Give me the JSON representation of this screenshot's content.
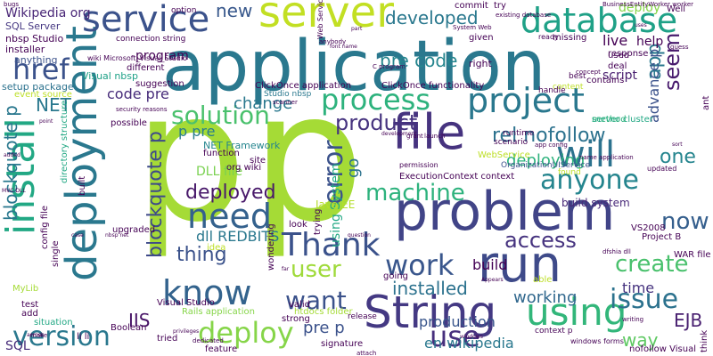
{
  "words": [
    {
      "text": "p",
      "color": "#a5db36"
    },
    {
      "text": "p",
      "color": "#a5db36"
    },
    {
      "text": "application",
      "color": "#2a788e"
    },
    {
      "text": "problem",
      "color": "#414487"
    },
    {
      "text": "deployment",
      "color": "#2a788e"
    },
    {
      "text": "install",
      "color": "#22a884"
    },
    {
      "text": "file",
      "color": "#46337f"
    },
    {
      "text": "project",
      "color": "#2a788e"
    },
    {
      "text": "service",
      "color": "#3b528b"
    },
    {
      "text": "server",
      "color": "#c2df23"
    },
    {
      "text": "database",
      "color": "#1fa187"
    },
    {
      "text": "String",
      "color": "#443983"
    },
    {
      "text": "run",
      "color": "#3e4a89"
    },
    {
      "text": "need",
      "color": "#34618d"
    },
    {
      "text": "Thank",
      "color": "#3b528b"
    },
    {
      "text": "will",
      "color": "#2c728e"
    },
    {
      "text": "know",
      "color": "#33638d"
    },
    {
      "text": "using",
      "color": "#32b67a"
    },
    {
      "text": "version",
      "color": "#2a788e"
    },
    {
      "text": "work",
      "color": "#39568c"
    },
    {
      "text": "process",
      "color": "#2db27d"
    },
    {
      "text": "solution",
      "color": "#4ac16d"
    },
    {
      "text": "href",
      "color": "#3b528b"
    },
    {
      "text": "use",
      "color": "#472f7d"
    },
    {
      "text": "issue",
      "color": "#2c728e"
    },
    {
      "text": "deploy",
      "color": "#86d549"
    },
    {
      "text": "anyone",
      "color": "#25858e"
    },
    {
      "text": "error",
      "color": "#3b528b"
    },
    {
      "text": "machine",
      "color": "#2db27d"
    },
    {
      "text": "blockquote p",
      "color": "#2a788e"
    },
    {
      "text": "blockquote p",
      "color": "#3e4a89"
    },
    {
      "text": "want",
      "color": "#3b528b"
    },
    {
      "text": "user",
      "color": "#9fda3a"
    },
    {
      "text": "access",
      "color": "#46337f"
    },
    {
      "text": "create",
      "color": "#4ac16d"
    },
    {
      "text": "now",
      "color": "#355f8d"
    },
    {
      "text": "seem",
      "color": "#481b6d"
    },
    {
      "text": "installed",
      "color": "#2c728e"
    },
    {
      "text": "deployed",
      "color": "#48186a"
    },
    {
      "text": "developed",
      "color": "#2a788e"
    },
    {
      "text": "product",
      "color": "#46337f"
    },
    {
      "text": "working",
      "color": "#31688e"
    },
    {
      "text": "rel nofollow",
      "color": "#2c728e"
    },
    {
      "text": "pre code",
      "color": "#25858e"
    },
    {
      "text": "one",
      "color": "#25858e"
    },
    {
      "text": "app",
      "color": "#2a788e"
    },
    {
      "text": "new",
      "color": "#38588c"
    },
    {
      "text": "change",
      "color": "#2a788e"
    },
    {
      "text": "thing",
      "color": "#3b528b"
    },
    {
      "text": "deploying",
      "color": "#2db27d"
    },
    {
      "text": "build",
      "color": "#440154"
    },
    {
      "text": "live",
      "color": "#440154"
    },
    {
      "text": "time",
      "color": "#46337f"
    },
    {
      "text": "EJB",
      "color": "#481f70"
    },
    {
      "text": "way",
      "color": "#5ec962"
    },
    {
      "text": "IIS",
      "color": "#481467"
    },
    {
      "text": "deploy",
      "color": "#86d549"
    },
    {
      "text": "NET",
      "color": "#2a788e"
    },
    {
      "text": "SQL",
      "color": "#472c7a"
    },
    {
      "text": "dll REDBITS",
      "color": "#2a788e"
    },
    {
      "text": "code pre",
      "color": "#472c7a"
    },
    {
      "text": "p pre",
      "color": "#287c8e"
    },
    {
      "text": "DLL file",
      "color": "#7ad151"
    },
    {
      "text": "pre p",
      "color": "#3b528b"
    },
    {
      "text": "using System",
      "color": "#22a884"
    },
    {
      "text": "go",
      "color": "#2c728e"
    },
    {
      "text": "en wikipedia",
      "color": "#2a788e"
    },
    {
      "text": "production",
      "color": "#39568c"
    },
    {
      "text": "program",
      "color": "#440154"
    },
    {
      "text": "help",
      "color": "#440154"
    },
    {
      "text": "advance p",
      "color": "#3b528b"
    },
    {
      "text": "script",
      "color": "#481d6f"
    },
    {
      "text": "Wikipedia org",
      "color": "#482576"
    },
    {
      "text": "SQL Server",
      "color": "#453781"
    },
    {
      "text": "nbsp Studio",
      "color": "#440154"
    },
    {
      "text": "installer",
      "color": "#440154"
    },
    {
      "text": "setup package",
      "color": "#2c728e"
    },
    {
      "text": "anything",
      "color": "#3b528b"
    },
    {
      "text": "event source",
      "color": "#bddf26"
    },
    {
      "text": "Visual nbsp",
      "color": "#1fa187"
    },
    {
      "text": "ClickOnce application",
      "color": "#440154"
    },
    {
      "text": "ClickOnce functionality",
      "color": "#440154"
    },
    {
      "text": "ExecutionContext context",
      "color": "#440154"
    },
    {
      "text": "NET Framework",
      "color": "#25858e"
    },
    {
      "text": "function",
      "color": "#440154"
    },
    {
      "text": "Java EE",
      "color": "#b5de2b"
    },
    {
      "text": "build system",
      "color": "#482878"
    },
    {
      "text": "VS2008",
      "color": "#440154"
    },
    {
      "text": "WAR file",
      "color": "#440154"
    },
    {
      "text": "Project B",
      "color": "#440154"
    },
    {
      "text": "htdocs folder",
      "color": "#a5db36"
    },
    {
      "text": "Rails application",
      "color": "#86d549"
    },
    {
      "text": "Visual Studio",
      "color": "#440154"
    },
    {
      "text": "Boolean",
      "color": "#440154"
    },
    {
      "text": "tried",
      "color": "#440154"
    },
    {
      "text": "signature",
      "color": "#440154"
    },
    {
      "text": "nofollow Visual",
      "color": "#440154"
    },
    {
      "text": "windows forms",
      "color": "#440154"
    },
    {
      "text": "context p",
      "color": "#440154"
    },
    {
      "text": "situation",
      "color": "#22a884"
    },
    {
      "text": "MyLib",
      "color": "#a5db36"
    },
    {
      "text": "li li",
      "color": "#440154"
    },
    {
      "text": "test",
      "color": "#440154"
    },
    {
      "text": "add",
      "color": "#440154"
    },
    {
      "text": "commit",
      "color": "#440154"
    },
    {
      "text": "try",
      "color": "#440154"
    },
    {
      "text": "option",
      "color": "#440154"
    },
    {
      "text": "bugs",
      "color": "#440154"
    },
    {
      "text": "response",
      "color": "#440154"
    },
    {
      "text": "Well",
      "color": "#440154"
    },
    {
      "text": "given",
      "color": "#440154"
    },
    {
      "text": "missing",
      "color": "#440154"
    },
    {
      "text": "ready",
      "color": "#440154"
    },
    {
      "text": "right",
      "color": "#440154"
    },
    {
      "text": "best",
      "color": "#440154"
    },
    {
      "text": "deal",
      "color": "#440154"
    },
    {
      "text": "used",
      "color": "#440154"
    },
    {
      "text": "contains",
      "color": "#440154"
    },
    {
      "text": "content",
      "color": "#bddf26"
    },
    {
      "text": "handle",
      "color": "#440154"
    },
    {
      "text": "server cluster",
      "color": "#22a884"
    },
    {
      "text": "method",
      "color": "#2db27d"
    },
    {
      "text": "runtime",
      "color": "#440154"
    },
    {
      "text": "scenario",
      "color": "#440154"
    },
    {
      "text": "WebService",
      "color": "#bddf26"
    },
    {
      "text": "OrganizationUIService",
      "color": "#3b528b"
    },
    {
      "text": "found",
      "color": "#bddf26"
    },
    {
      "text": "different",
      "color": "#440154"
    },
    {
      "text": "suggestion",
      "color": "#440154"
    },
    {
      "text": "possible",
      "color": "#440154"
    },
    {
      "text": "Studio nbsp",
      "color": "#2a788e"
    },
    {
      "text": "directory structure",
      "color": "#22a884"
    },
    {
      "text": "built",
      "color": "#440154"
    },
    {
      "text": "upgraded",
      "color": "#440154"
    },
    {
      "text": "config file",
      "color": "#440154"
    },
    {
      "text": "single",
      "color": "#440154"
    },
    {
      "text": "trying",
      "color": "#440154"
    },
    {
      "text": "look",
      "color": "#440154"
    },
    {
      "text": "idea",
      "color": "#bddf26"
    },
    {
      "text": "site",
      "color": "#440154"
    },
    {
      "text": "org wiki",
      "color": "#440154"
    },
    {
      "text": "wondering",
      "color": "#440154"
    },
    {
      "text": "going",
      "color": "#440154"
    },
    {
      "text": "able",
      "color": "#bddf26"
    },
    {
      "text": "strong",
      "color": "#440154"
    },
    {
      "text": "release",
      "color": "#440154"
    },
    {
      "text": "feature",
      "color": "#440154"
    },
    {
      "text": "valid",
      "color": "#440154"
    },
    {
      "text": "wiki Microsoft_Visual_Studio",
      "color": "#440154"
    },
    {
      "text": "connection string",
      "color": "#440154"
    },
    {
      "text": "think",
      "color": "#440154"
    },
    {
      "text": "ant",
      "color": "#440154"
    },
    {
      "text": "Web Service",
      "color": "#440154"
    },
    {
      "text": "anybody",
      "color": "#440154"
    },
    {
      "text": "existing database",
      "color": "#440154"
    },
    {
      "text": "System Web",
      "color": "#440154"
    },
    {
      "text": "app config",
      "color": "#440154"
    },
    {
      "text": "dfshia dll",
      "color": "#440154"
    },
    {
      "text": "launch",
      "color": "#440154"
    },
    {
      "text": "permission",
      "color": "#440154"
    },
    {
      "text": "updated",
      "color": "#440154"
    },
    {
      "text": "C program",
      "color": "#440154"
    },
    {
      "text": "writing",
      "color": "#440154"
    },
    {
      "text": "guess",
      "color": "#440154"
    },
    {
      "text": "concept",
      "color": "#440154"
    },
    {
      "text": "BusinessEntityWorker worker",
      "color": "#440154"
    },
    {
      "text": "development",
      "color": "#440154"
    },
    {
      "text": "name application",
      "color": "#440154"
    },
    {
      "text": "scanner",
      "color": "#440154"
    },
    {
      "text": "security reasons",
      "color": "#440154"
    },
    {
      "text": "privileges",
      "color": "#440154"
    },
    {
      "text": "dedicated",
      "color": "#440154"
    },
    {
      "text": "attach",
      "color": "#440154"
    },
    {
      "text": "grant",
      "color": "#440154"
    },
    {
      "text": "make",
      "color": "#440154"
    },
    {
      "text": "MVC DLL",
      "color": "#440154"
    },
    {
      "text": "added",
      "color": "#440154"
    },
    {
      "text": "point",
      "color": "#440154"
    },
    {
      "text": "across",
      "color": "#440154"
    },
    {
      "text": "nbsp net",
      "color": "#440154"
    },
    {
      "text": "case",
      "color": "#440154"
    },
    {
      "text": "question",
      "color": "#440154"
    },
    {
      "text": "far",
      "color": "#440154"
    },
    {
      "text": "windows",
      "color": "#440154"
    },
    {
      "text": "Appears",
      "color": "#440154"
    },
    {
      "text": "sort",
      "color": "#440154"
    },
    {
      "text": "font name",
      "color": "#440154"
    },
    {
      "text": "part",
      "color": "#440154"
    },
    {
      "text": "uses",
      "color": "#440154"
    }
  ]
}
